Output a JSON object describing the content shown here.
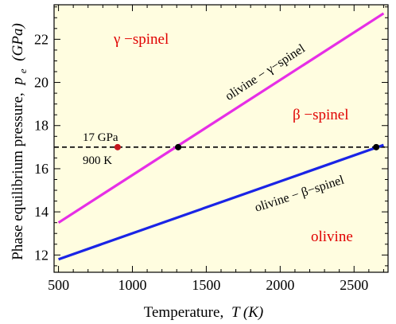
{
  "chart_data": {
    "type": "line",
    "xlabel": "Temperature,",
    "xlabel_var": "T (K)",
    "ylabel": "Phase equilibrium pressure,",
    "ylabel_var": "p",
    "ylabel_sub": "e",
    "ylabel_unit": "(GPa)",
    "xlim": [
      470,
      2730
    ],
    "ylim": [
      11.2,
      23.6
    ],
    "xticks": [
      500,
      1000,
      1500,
      2000,
      2500
    ],
    "yticks": [
      12,
      14,
      16,
      18,
      20,
      22
    ],
    "grid": false,
    "background": "#fffde0",
    "series": [
      {
        "name": "olivine − γ−spinel",
        "color": "#e62ee6",
        "x": [
          500,
          2700
        ],
        "y": [
          13.5,
          23.2
        ]
      },
      {
        "name": "olivine − β−spinel",
        "color": "#1a24e6",
        "x": [
          500,
          2700
        ],
        "y": [
          11.8,
          17.1
        ]
      }
    ],
    "reference_line": {
      "y": 17,
      "style": "dashed",
      "color": "#000000"
    },
    "points": [
      {
        "x": 900,
        "y": 17,
        "color": "#c4161c"
      },
      {
        "x": 1310,
        "y": 17,
        "color": "#000000"
      },
      {
        "x": 2650,
        "y": 17,
        "color": "#000000"
      }
    ],
    "annotations": {
      "gamma_spinel": "γ −spinel",
      "beta_spinel": "β −spinel",
      "olivine": "olivine",
      "point_pressure": "17 GPa",
      "point_temperature": "900 K"
    },
    "colors": {
      "region_label": "#e00000",
      "axis": "#000000"
    }
  }
}
